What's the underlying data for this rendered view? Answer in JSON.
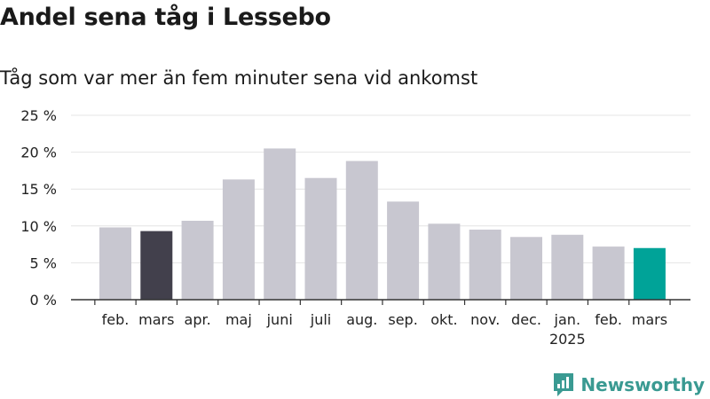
{
  "title": "Andel sena tåg i Lessebo",
  "subtitle": "Tåg som var mer än fem minuter sena vid ankomst",
  "brand": {
    "name": "Newsworthy",
    "color": "#3a9a92",
    "icon": "newsworthy-logo-icon"
  },
  "colors": {
    "bar_default": "#c8c7d0",
    "bar_first_highlight": "#42404c",
    "bar_latest_highlight": "#00a398"
  },
  "chart_data": {
    "type": "bar",
    "categories": [
      "feb.",
      "mars",
      "apr.",
      "maj",
      "juni",
      "juli",
      "aug.",
      "sep.",
      "okt.",
      "nov.",
      "dec.",
      "jan.",
      "feb.",
      "mars"
    ],
    "year_labels": [
      {
        "category_index": 11,
        "label": "2025"
      }
    ],
    "values": [
      9.8,
      9.3,
      10.7,
      16.3,
      20.5,
      16.5,
      18.8,
      13.3,
      10.3,
      9.5,
      8.5,
      8.8,
      7.2,
      7.0
    ],
    "highlight": {
      "1": "bar_first_highlight",
      "13": "bar_latest_highlight"
    },
    "ylim": [
      0,
      25
    ],
    "yticks": [
      0,
      5,
      10,
      15,
      20,
      25
    ],
    "ytick_labels": [
      "0 %",
      "5 %",
      "10 %",
      "15 %",
      "20 %",
      "25 %"
    ],
    "grid": true,
    "xlabel": "",
    "ylabel": ""
  }
}
